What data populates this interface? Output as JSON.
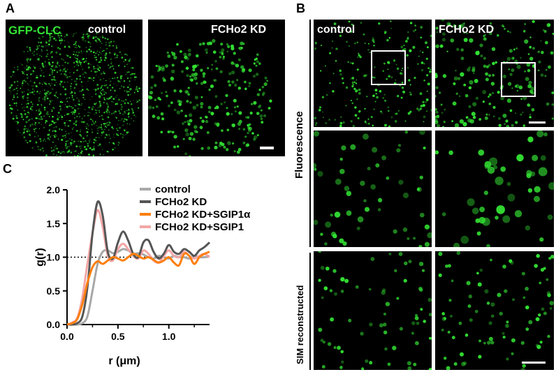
{
  "panels": {
    "A": {
      "letter": "A",
      "left_label": "GFP-CLC",
      "left_condition": "control",
      "right_condition": "FCHo2 KD"
    },
    "B": {
      "letter": "B",
      "col_left": "control",
      "col_right": "FCHo2 KD",
      "row_fluorescence": "Fluorescence",
      "row_sim": "SIM reconstructed"
    },
    "C": {
      "letter": "C"
    }
  },
  "colors": {
    "fluor_green": "#33e233",
    "control": "#a8a8a8",
    "fcho2_kd": "#555555",
    "fcho2_kd_sgip1a": "#ff7f0e",
    "fcho2_kd_sgip1": "#f4a6a6"
  },
  "chart_data": {
    "type": "line",
    "title": "",
    "xlabel": "r (μm)",
    "ylabel": "g(r)",
    "xlim": [
      0,
      1.4
    ],
    "ylim": [
      0,
      2.0
    ],
    "xticks": [
      "0.0",
      "0.5",
      "1.0"
    ],
    "yticks": [
      "0.0",
      "0.5",
      "1.0",
      "1.5",
      "2.0"
    ],
    "reference_line": 1.0,
    "legend_position": "top-right",
    "series": [
      {
        "name": "control",
        "color": "#a8a8a8",
        "x": [
          0,
          0.05,
          0.1,
          0.15,
          0.2,
          0.25,
          0.3,
          0.35,
          0.4,
          0.45,
          0.5,
          0.55,
          0.6,
          0.65,
          0.7,
          0.75,
          0.8,
          0.85,
          0.9,
          0.95,
          1.0,
          1.05,
          1.1,
          1.15,
          1.2,
          1.25,
          1.3,
          1.35,
          1.4
        ],
        "y": [
          0,
          0,
          0,
          0.02,
          0.12,
          0.5,
          0.9,
          1.08,
          1.1,
          1.06,
          1.08,
          1.12,
          1.1,
          1.05,
          1.06,
          1.04,
          1.0,
          0.98,
          1.02,
          1.0,
          0.98,
          1.02,
          1.0,
          1.0,
          0.98,
          1.02,
          1.0,
          1.0,
          1.02
        ]
      },
      {
        "name": "FCHo2 KD",
        "color": "#555555",
        "x": [
          0,
          0.05,
          0.1,
          0.15,
          0.2,
          0.25,
          0.3,
          0.35,
          0.4,
          0.45,
          0.5,
          0.55,
          0.6,
          0.65,
          0.7,
          0.75,
          0.8,
          0.85,
          0.9,
          0.95,
          1.0,
          1.05,
          1.1,
          1.15,
          1.2,
          1.25,
          1.3,
          1.35,
          1.4
        ],
        "y": [
          0,
          0,
          0.02,
          0.12,
          0.55,
          1.35,
          1.82,
          1.62,
          1.08,
          0.98,
          1.22,
          1.38,
          1.25,
          1.05,
          1.0,
          1.22,
          1.25,
          1.08,
          0.98,
          1.05,
          1.18,
          1.08,
          1.05,
          1.12,
          1.08,
          1.02,
          1.1,
          1.15,
          1.22
        ]
      },
      {
        "name": "FCHo2 KD+SGIP1α",
        "color": "#ff7f0e",
        "x": [
          0,
          0.05,
          0.1,
          0.15,
          0.2,
          0.25,
          0.3,
          0.35,
          0.4,
          0.45,
          0.5,
          0.55,
          0.6,
          0.65,
          0.7,
          0.75,
          0.8,
          0.85,
          0.9,
          0.95,
          1.0,
          1.05,
          1.1,
          1.15,
          1.2,
          1.25,
          1.3,
          1.35,
          1.4
        ],
        "y": [
          0,
          0.02,
          0.08,
          0.3,
          0.62,
          0.85,
          0.94,
          0.9,
          0.95,
          1.0,
          0.98,
          0.95,
          1.0,
          1.05,
          1.02,
          0.98,
          1.0,
          0.96,
          0.92,
          0.95,
          1.0,
          0.92,
          0.88,
          1.05,
          1.02,
          0.9,
          1.0,
          1.05,
          1.08
        ]
      },
      {
        "name": "FCHo2 KD+SGIP1",
        "color": "#f4a6a6",
        "x": [
          0,
          0.05,
          0.1,
          0.15,
          0.2,
          0.25,
          0.3,
          0.35,
          0.4,
          0.45,
          0.5,
          0.55,
          0.6,
          0.65,
          0.7,
          0.75,
          0.8,
          0.85,
          0.9,
          0.95,
          1.0,
          1.05,
          1.1,
          1.15,
          1.2,
          1.25,
          1.3,
          1.35,
          1.4
        ],
        "y": [
          0,
          0.03,
          0.1,
          0.4,
          0.9,
          1.35,
          1.7,
          1.45,
          1.02,
          0.95,
          1.12,
          1.2,
          1.12,
          1.02,
          0.98,
          1.1,
          1.05,
          0.95,
          0.92,
          1.02,
          1.1,
          1.02,
          1.0,
          1.08,
          1.02,
          0.98,
          1.02,
          1.05,
          1.0
        ]
      }
    ]
  }
}
